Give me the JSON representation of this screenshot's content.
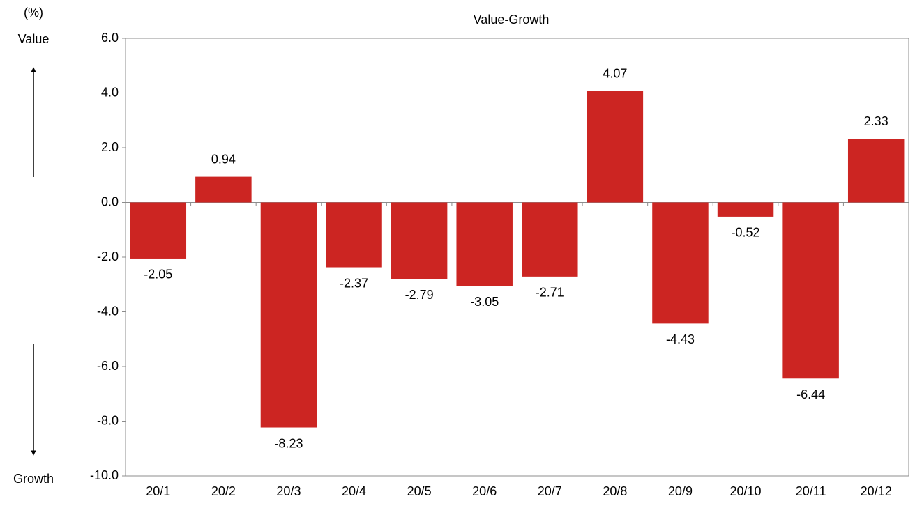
{
  "chart_data": {
    "type": "bar",
    "title": "Value-Growth",
    "y_unit": "(%)",
    "annotations": [
      "Value",
      "Growth"
    ],
    "categories": [
      "20/1",
      "20/2",
      "20/3",
      "20/4",
      "20/5",
      "20/6",
      "20/7",
      "20/8",
      "20/9",
      "20/10",
      "20/11",
      "20/12"
    ],
    "values": [
      -2.05,
      0.94,
      -8.23,
      -2.37,
      -2.79,
      -3.05,
      -2.71,
      4.07,
      -4.43,
      -0.52,
      -6.44,
      2.33
    ],
    "color": "#cc2522",
    "ylim": [
      -10,
      6
    ],
    "yticks": [
      {
        "value": -10,
        "label": "-10.0"
      },
      {
        "value": -8,
        "label": "-8.0"
      },
      {
        "value": -6,
        "label": "-6.0"
      },
      {
        "value": -4,
        "label": "-4.0"
      },
      {
        "value": -2,
        "label": "-2.0"
      },
      {
        "value": 0,
        "label": "0.0"
      },
      {
        "value": 2,
        "label": "2.0"
      },
      {
        "value": 4,
        "label": "4.0"
      },
      {
        "value": 6,
        "label": "6.0"
      }
    ],
    "grid": false
  }
}
